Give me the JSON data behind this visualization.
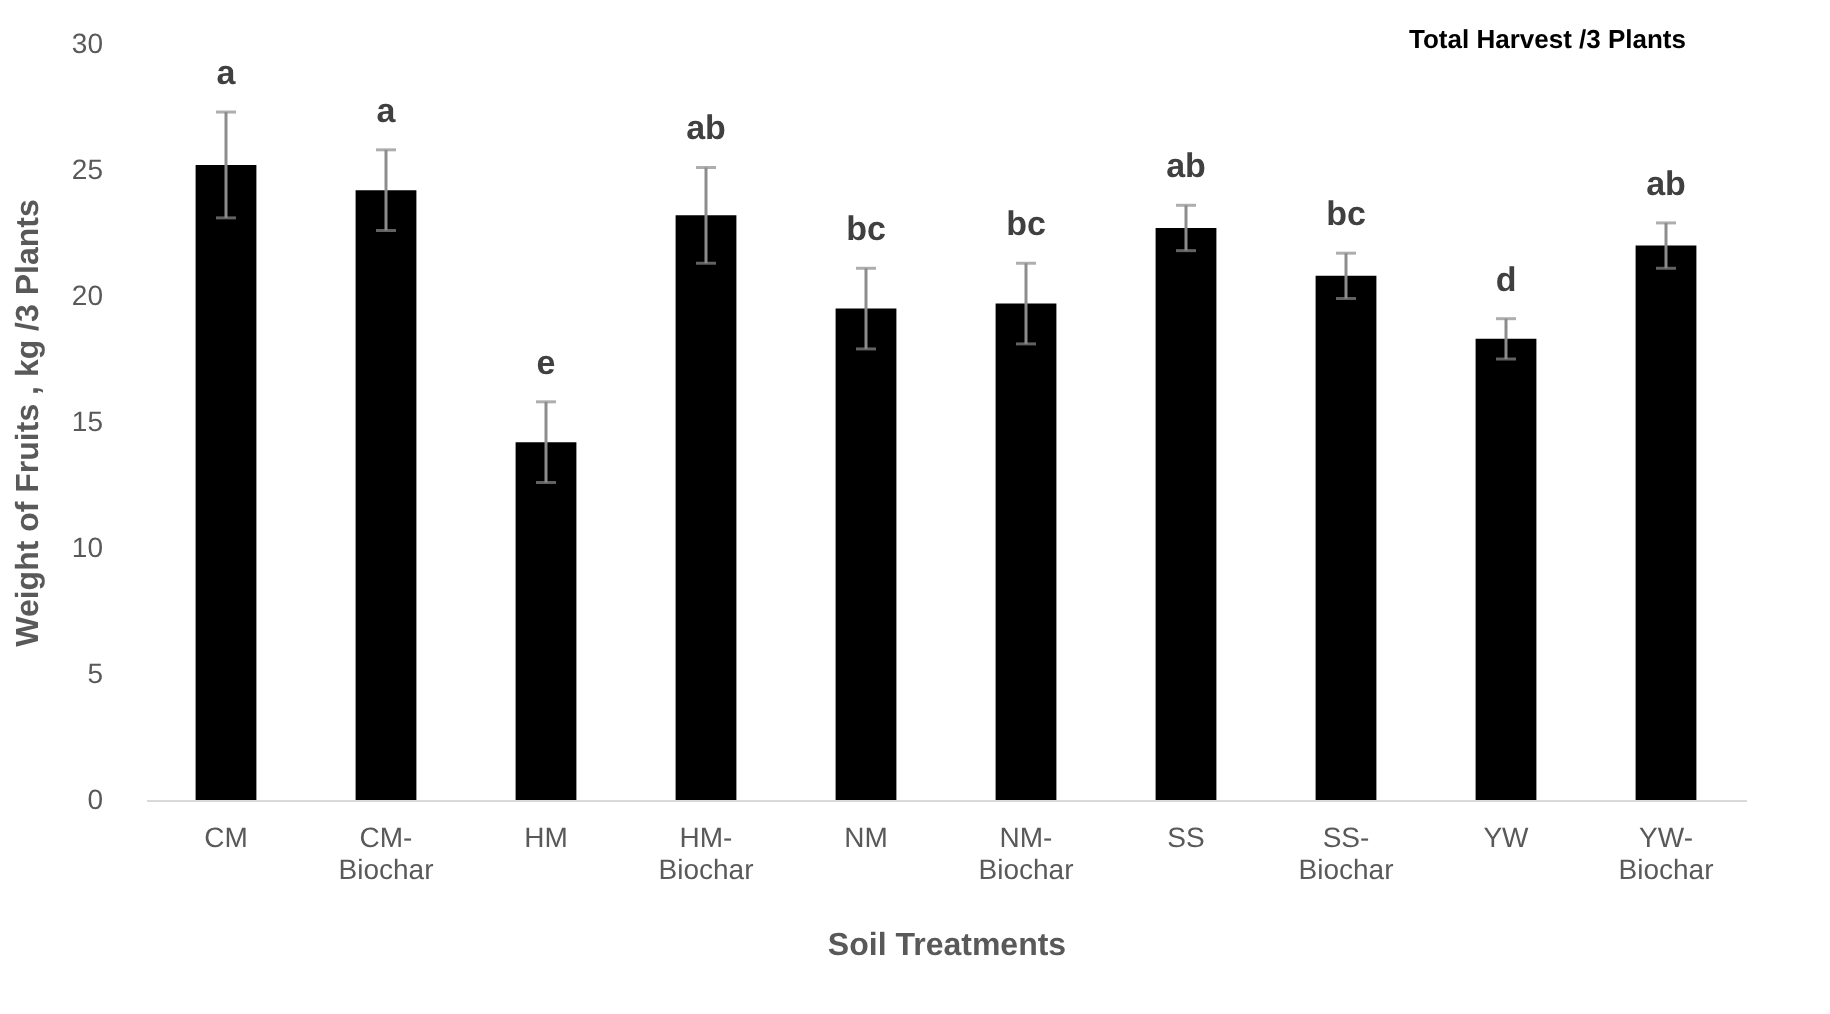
{
  "chart_data": {
    "type": "bar",
    "title": "Total Harvest /3 Plants",
    "xlabel": "Soil Treatments",
    "ylabel": "Weight of Fruits , kg /3 Plants",
    "categories": [
      "CM",
      "CM-Biochar",
      "HM",
      "HM-Biochar",
      "NM",
      "NM-Biochar",
      "SS",
      "SS-Biochar",
      "YW",
      "YW-Biochar"
    ],
    "values": [
      25.2,
      24.2,
      14.2,
      23.2,
      19.5,
      19.7,
      22.7,
      20.8,
      18.3,
      22.0
    ],
    "errors": [
      2.1,
      1.6,
      1.6,
      1.9,
      1.6,
      1.6,
      0.9,
      0.9,
      0.8,
      0.9
    ],
    "color": "#000000",
    "ylim": [
      0,
      30
    ],
    "yticks": [
      0,
      5,
      10,
      15,
      20,
      25,
      30
    ],
    "grid": false,
    "annotations": [
      "a",
      "a",
      "e",
      "ab",
      "bc",
      "bc",
      "ab",
      "bc",
      "d",
      "ab"
    ]
  }
}
